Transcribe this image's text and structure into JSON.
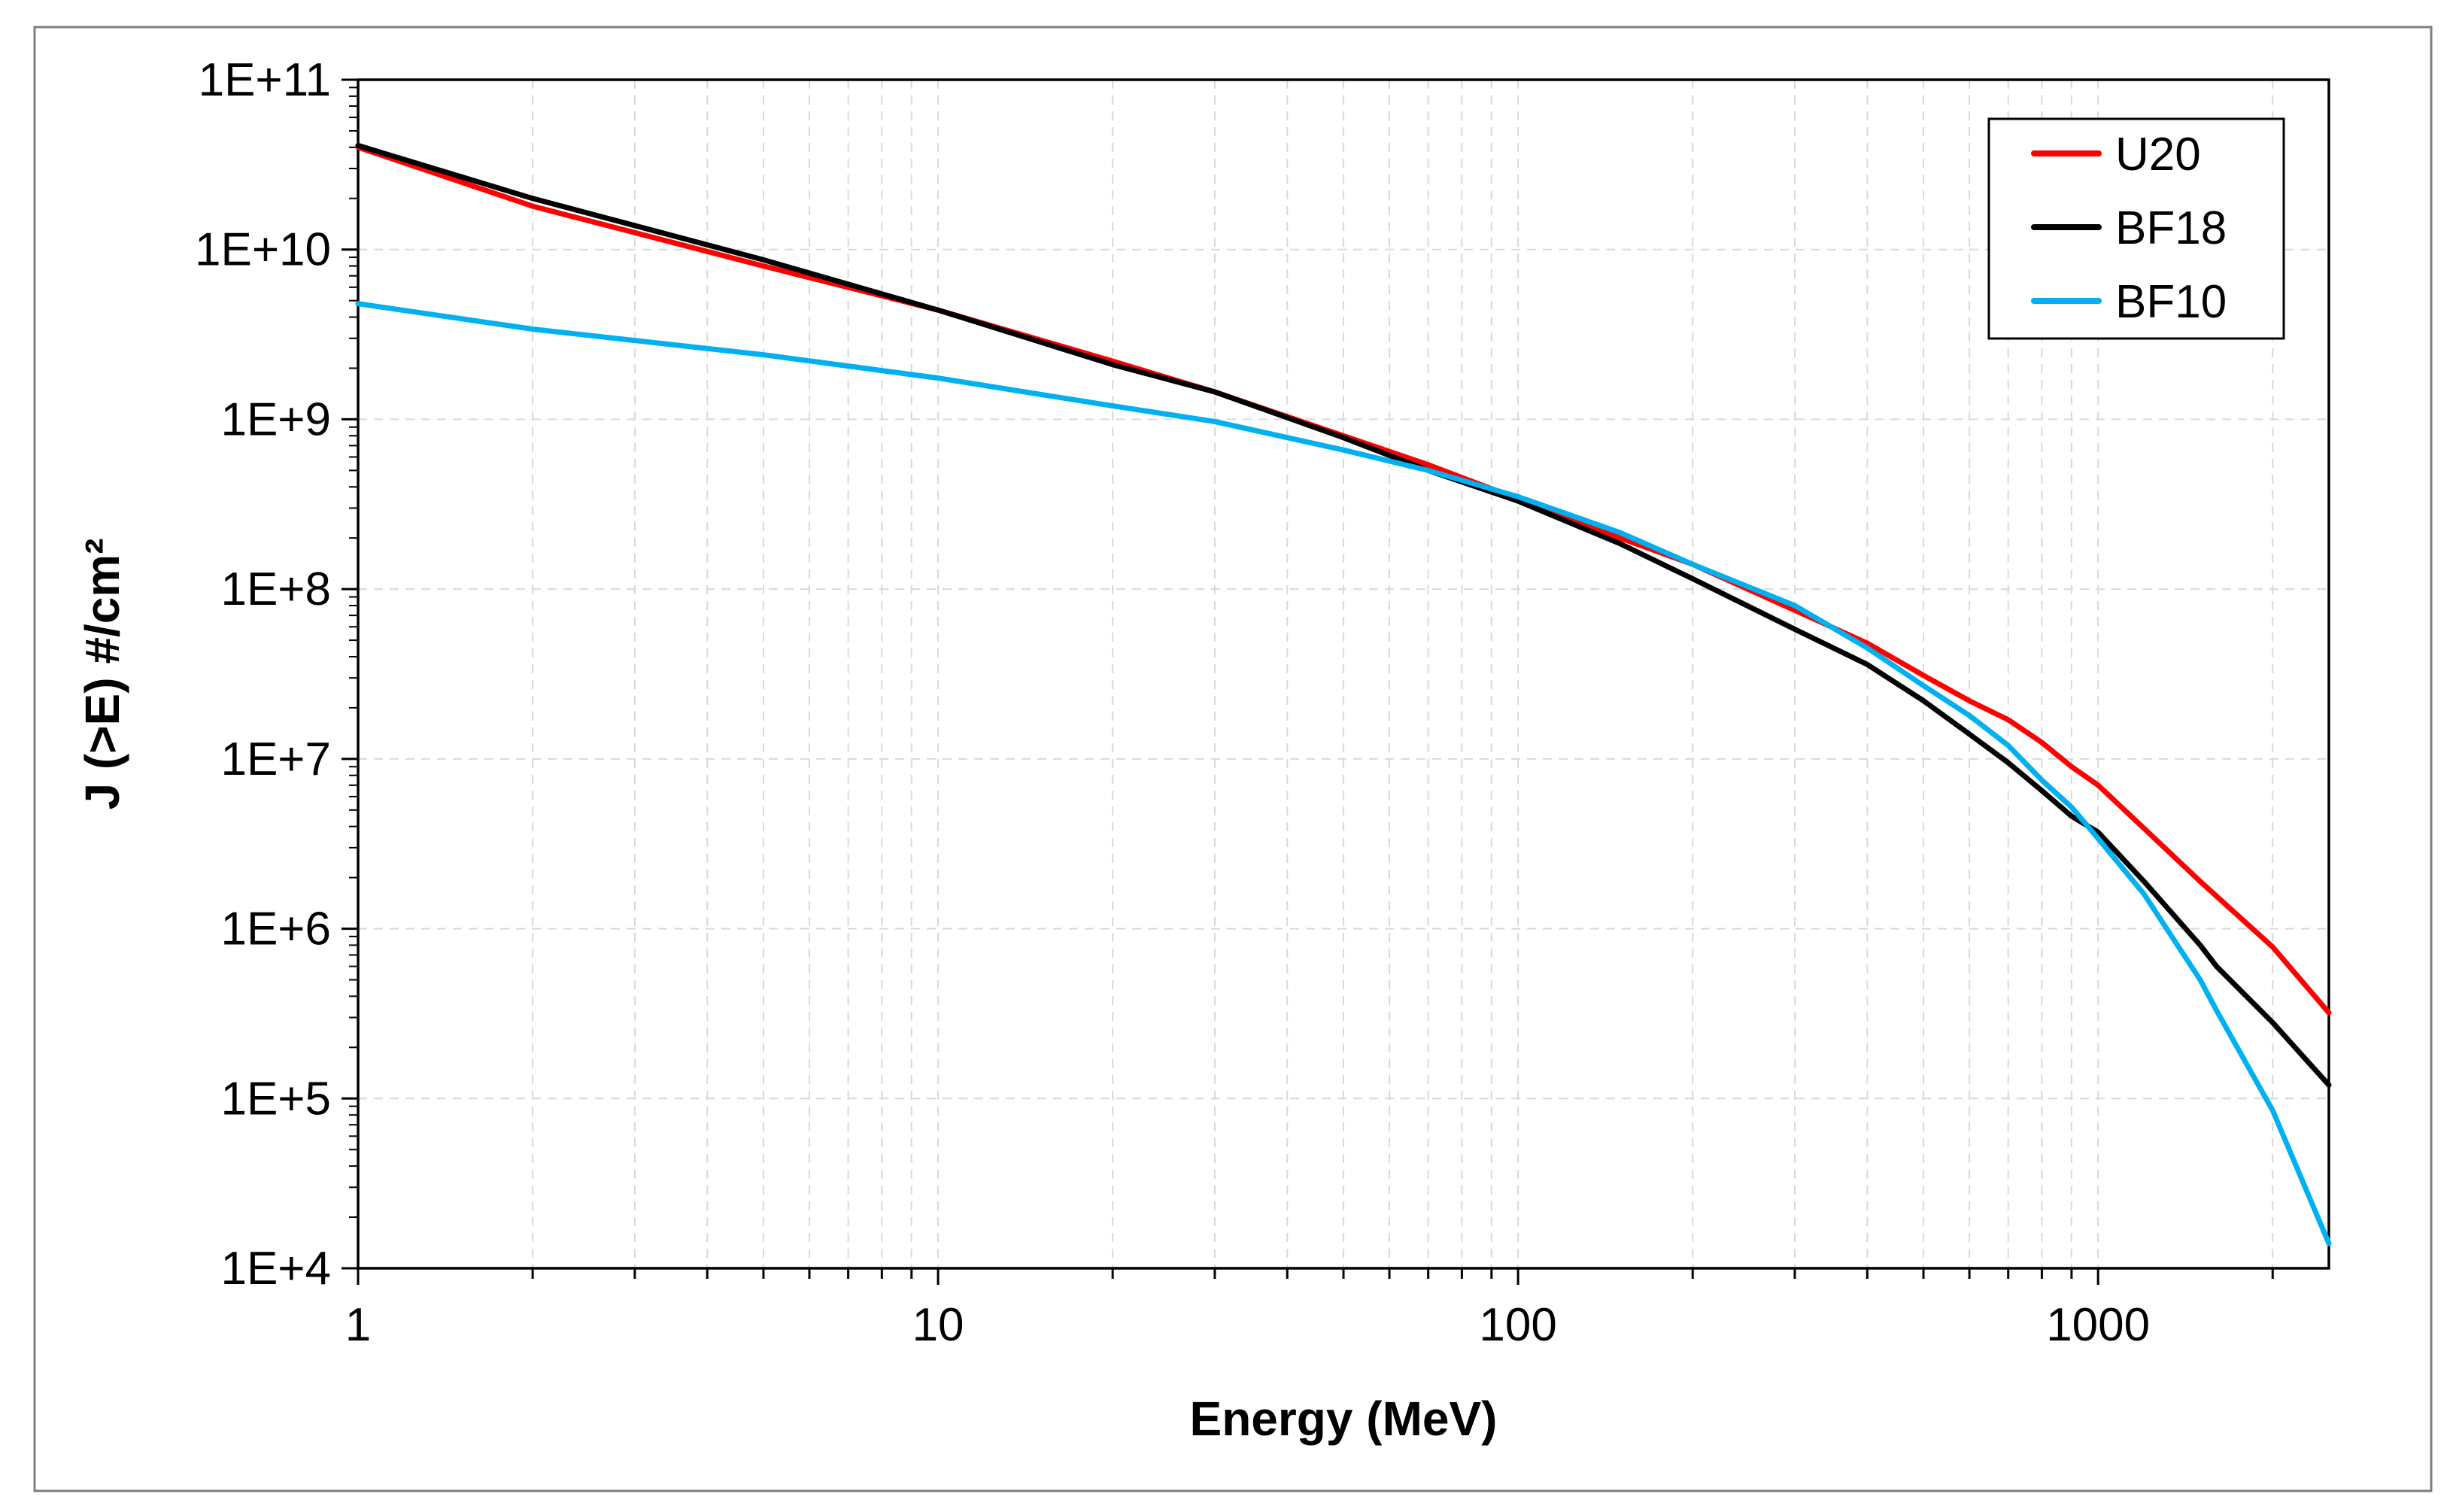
{
  "chart_data": {
    "type": "line",
    "title": "",
    "xlabel": "Energy (MeV)",
    "ylabel": "J (>E) #/cm²",
    "xscale": "log",
    "yscale": "log",
    "xlim": [
      1,
      2500
    ],
    "ylim": [
      10000,
      100000000000
    ],
    "x_ticks": [
      1,
      10,
      100,
      1000
    ],
    "x_tick_labels": [
      "1",
      "10",
      "100",
      "1000"
    ],
    "y_ticks": [
      10000,
      100000,
      1000000,
      10000000,
      100000000,
      1000000000,
      10000000000,
      100000000000
    ],
    "y_tick_labels": [
      "1E+4",
      "1E+5",
      "1E+6",
      "1E+7",
      "1E+8",
      "1E+9",
      "1E+10",
      "1E+11"
    ],
    "grid": true,
    "legend_position": "top-right",
    "series": [
      {
        "name": "U20",
        "color": "#ff0000",
        "x": [
          1,
          2,
          5,
          10,
          20,
          30,
          50,
          70,
          100,
          150,
          200,
          300,
          400,
          500,
          600,
          700,
          800,
          900,
          1000,
          1200,
          1500,
          2000,
          2500
        ],
        "y": [
          40000000000,
          18000000000,
          8000000000,
          4400000000,
          2200000000,
          1450000000,
          800000000,
          540000000,
          340000000,
          200000000,
          140000000,
          75000000,
          48000000,
          31000000,
          22000000,
          17000000,
          12500000,
          9000000,
          7000000,
          3900000,
          1900000,
          780000,
          320000
        ]
      },
      {
        "name": "BF18",
        "color": "#000000",
        "x": [
          1,
          2,
          5,
          10,
          20,
          30,
          50,
          70,
          100,
          150,
          200,
          300,
          400,
          500,
          600,
          700,
          800,
          900,
          1000,
          1200,
          1500,
          1600,
          2000,
          2500
        ],
        "y": [
          41000000000,
          20000000000,
          8700000000,
          4400000000,
          2100000000,
          1450000000,
          780000000,
          500000000,
          330000000,
          185000000,
          115000000,
          58000000,
          36000000,
          22000000,
          14000000,
          9500000,
          6500000,
          4600000,
          3700000,
          1900000,
          800000,
          600000,
          280000,
          120000
        ]
      },
      {
        "name": "BF10",
        "color": "#00b0f0",
        "x": [
          1,
          2,
          5,
          10,
          20,
          30,
          50,
          70,
          100,
          150,
          200,
          300,
          400,
          500,
          600,
          700,
          800,
          900,
          1000,
          1200,
          1500,
          1600,
          2000,
          2500
        ],
        "y": [
          4800000000,
          3400000000,
          2400000000,
          1750000000,
          1200000000,
          970000000,
          660000000,
          500000000,
          350000000,
          215000000,
          140000000,
          80000000,
          45000000,
          27000000,
          18000000,
          12000000,
          7500000,
          5200000,
          3400000,
          1600000,
          500000,
          330000,
          85000,
          14000
        ]
      }
    ]
  }
}
